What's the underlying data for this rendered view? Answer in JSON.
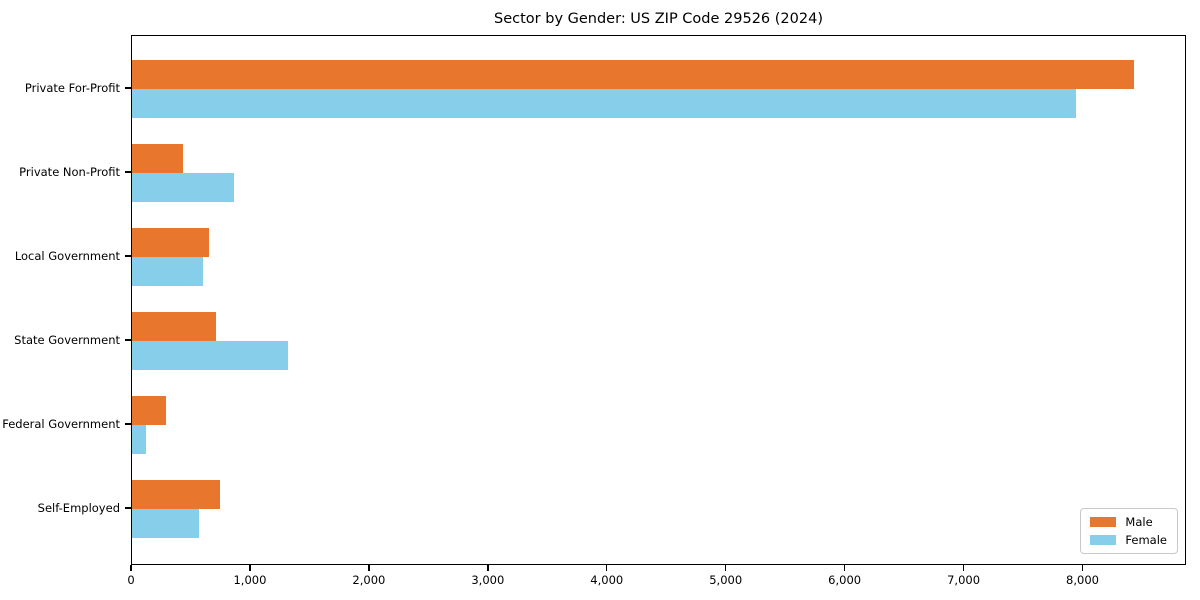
{
  "chart_data": {
    "type": "bar",
    "orientation": "horizontal",
    "title": "Sector by Gender: US ZIP Code 29526 (2024)",
    "categories": [
      "Private For-Profit",
      "Private Non-Profit",
      "Local Government",
      "State Government",
      "Federal Government",
      "Self-Employed"
    ],
    "series": [
      {
        "name": "Male",
        "color": "#E8762D",
        "values": [
          8440,
          430,
          650,
          705,
          290,
          742
        ]
      },
      {
        "name": "Female",
        "color": "#87CEEB",
        "values": [
          7950,
          860,
          595,
          1310,
          115,
          566
        ]
      }
    ],
    "xlim": [
      0,
      8870
    ],
    "xticks": [
      0,
      1000,
      2000,
      3000,
      4000,
      5000,
      6000,
      7000,
      8000
    ],
    "xtick_labels": [
      "0",
      "1,000",
      "2,000",
      "3,000",
      "4,000",
      "5,000",
      "6,000",
      "7,000",
      "8,000"
    ],
    "legend_position": "lower right",
    "grid": false,
    "background_color": "#ffffff",
    "axis_color": "#000000"
  }
}
